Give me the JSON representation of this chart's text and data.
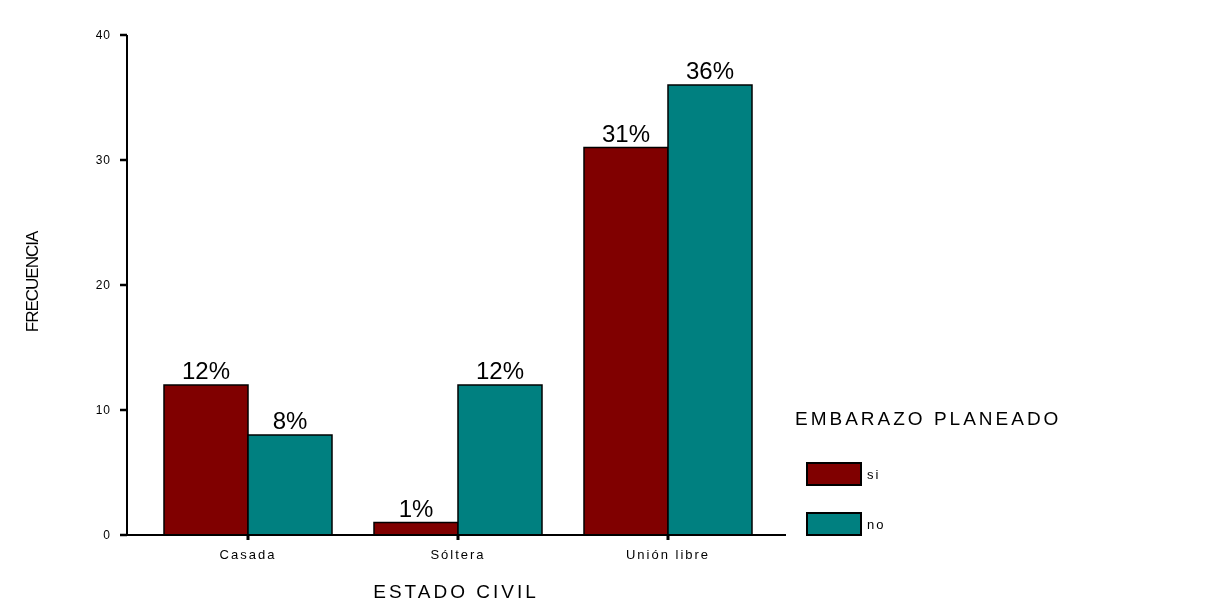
{
  "chart_data": {
    "type": "bar",
    "xlabel": "ESTADO CIVIL",
    "ylabel": "FRECUENCIA",
    "legend_title": "EMBARAZO PLANEADO",
    "legend": "right",
    "categories": [
      "Casada",
      "Sóltera",
      "Unión libre"
    ],
    "series": [
      {
        "name": "si",
        "color": "#800000",
        "values": [
          12,
          1,
          31
        ],
        "value_labels": [
          "12%",
          "1%",
          "31%"
        ]
      },
      {
        "name": "no",
        "color": "#008080",
        "values": [
          8,
          12,
          36
        ],
        "value_labels": [
          "8%",
          "12%",
          "36%"
        ]
      }
    ],
    "ylim": [
      0,
      40
    ],
    "yticks": [
      0,
      10,
      20,
      30,
      40
    ]
  }
}
